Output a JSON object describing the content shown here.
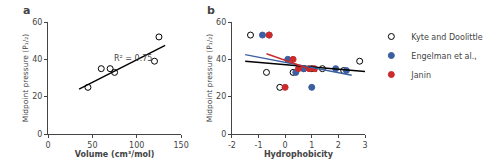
{
  "chart_data": [
    {
      "type": "scatter",
      "title": "a",
      "x_label": "Volume (cm³/mol)",
      "y_label": "Midpoint pressure (P₁/₂)",
      "xlim": [
        0,
        150
      ],
      "ylim": [
        0,
        60
      ],
      "xticks": [
        0,
        50,
        100,
        150
      ],
      "yticks": [
        0,
        20,
        40,
        60
      ],
      "grid": false,
      "series": [
        {
          "type": "scatter",
          "color": "black",
          "marker": "open",
          "x": [
            45,
            60,
            70,
            75,
            120,
            125
          ],
          "values": [
            25,
            35,
            35,
            33,
            39,
            52
          ]
        },
        {
          "type": "line",
          "color": "black",
          "line_style": "solid",
          "x": [
            35,
            132
          ],
          "values": [
            24.0,
            47.5
          ]
        }
      ],
      "annotations": [
        {
          "text": "R² = 0.75",
          "x": 72,
          "y": 37
        }
      ]
    },
    {
      "type": "scatter",
      "title": "b",
      "x_label": "Hydrophobicity",
      "y_label": "Midpoint pressure (P₁/₂)",
      "xlim": [
        -2,
        3
      ],
      "ylim": [
        0,
        60
      ],
      "xticks": [
        -2,
        -1,
        0,
        1,
        2,
        3
      ],
      "yticks": [
        0,
        20,
        40,
        60
      ],
      "grid": false,
      "legend": "upper right",
      "series": [
        {
          "name": "Kyte and Doolittle",
          "type": "scatter",
          "color": "black",
          "marker": "open",
          "x": [
            -1.3,
            -0.7,
            -0.2,
            0.3,
            0.7,
            1.0,
            1.4,
            2.2,
            2.8
          ],
          "values": [
            53,
            33,
            25,
            33,
            35,
            35,
            35,
            34,
            39
          ]
        },
        {
          "name": "Engelman et al.,",
          "type": "scatter",
          "color": "#3b5fa0",
          "marker": "circle",
          "x": [
            -0.85,
            -0.6,
            0.1,
            0.4,
            0.7,
            1.0,
            1.9,
            2.3
          ],
          "values": [
            53,
            53,
            40,
            33,
            35,
            25,
            35,
            34
          ]
        },
        {
          "name": "Janin",
          "type": "scatter",
          "color": "#cc2b2b",
          "marker": "circle",
          "x": [
            -0.6,
            0.0,
            0.3,
            0.5,
            0.9,
            1.1
          ],
          "values": [
            53,
            25,
            40,
            35,
            35,
            35
          ]
        },
        {
          "type": "line",
          "color": "black",
          "line_style": "solid",
          "x": [
            -1.5,
            3.0
          ],
          "values": [
            39.0,
            33.5
          ]
        },
        {
          "type": "line",
          "color": "#3b5fa0",
          "line_style": "solid",
          "x": [
            -1.5,
            2.5
          ],
          "values": [
            42.5,
            31.5
          ]
        },
        {
          "type": "line",
          "color": "#cc2b2b",
          "line_style": "solid",
          "x": [
            -0.7,
            1.2
          ],
          "values": [
            43.0,
            33.5
          ]
        }
      ]
    }
  ]
}
